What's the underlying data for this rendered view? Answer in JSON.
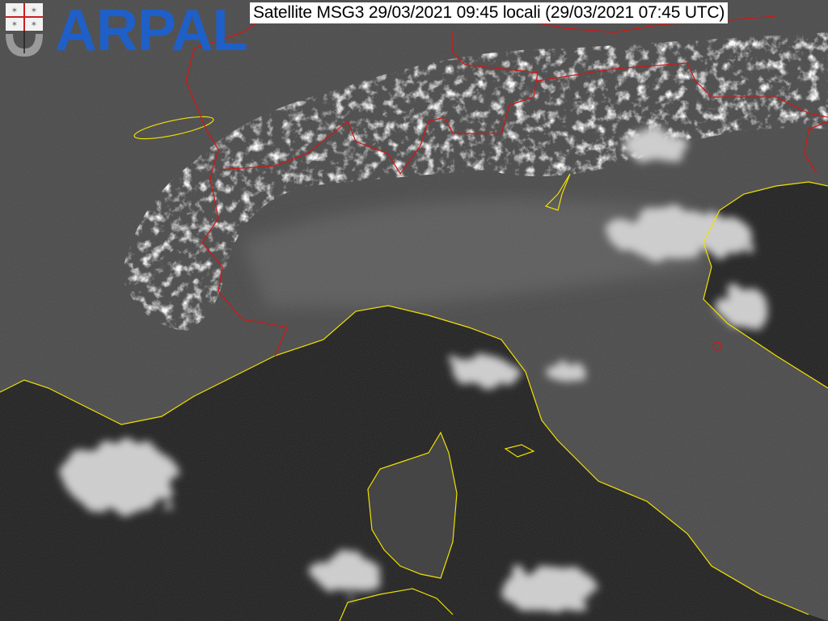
{
  "caption": "Satellite MSG3 29/03/2021 09:45 locali (29/03/2021 07:45 UTC)",
  "logo": {
    "text": "ARPAL",
    "color": "#1f5fc8",
    "icon": "liguria-coat-of-arms-icon"
  },
  "colors": {
    "coastline": "#f0e000",
    "borders": "#d01818",
    "sea": "#1c1c1c",
    "land": "#4a4a4a",
    "snow": "#f0f0f0"
  }
}
